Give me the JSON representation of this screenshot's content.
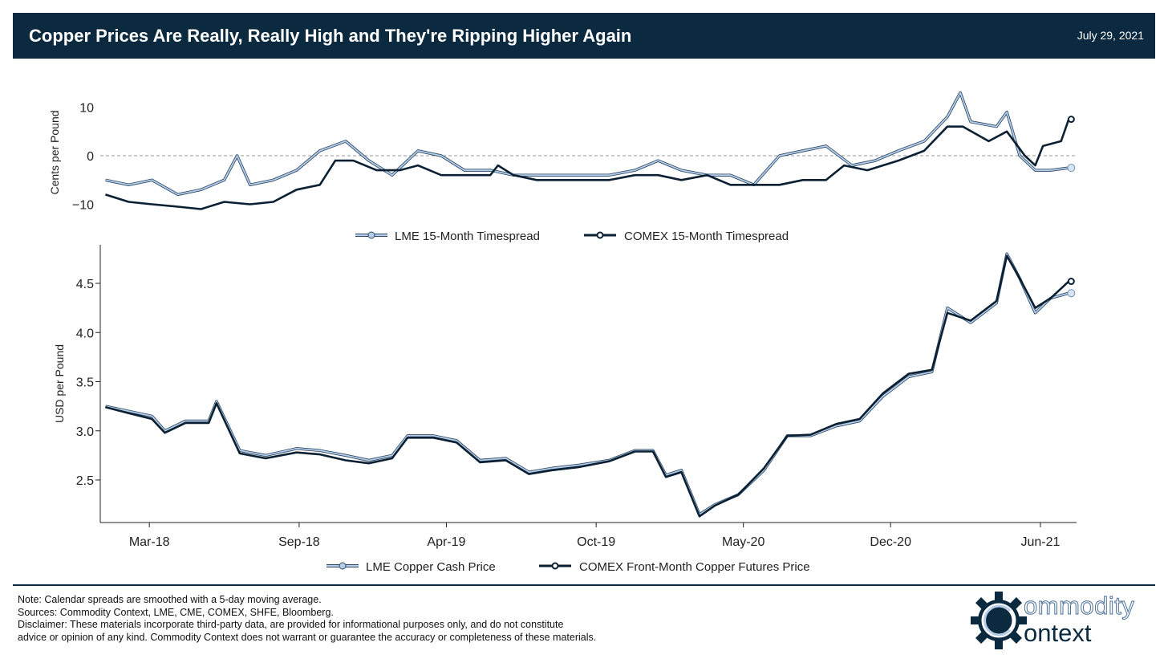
{
  "header": {
    "title": "Copper Prices Are Really, Really High and They're Ripping Higher Again",
    "date": "July 29, 2021"
  },
  "colors": {
    "header": "#0b2a40",
    "lme": "#b7cde8",
    "lme_edge": "#2c4a66",
    "comex": "#0b2033",
    "zero": "#999999"
  },
  "chart_data": [
    {
      "type": "line",
      "ylabel": "Cents per Pound",
      "ylim": [
        -13,
        14
      ],
      "yticks": [
        10,
        0,
        -10
      ],
      "ytick_labels": [
        "10",
        "0",
        "−10"
      ],
      "zero_line": true,
      "xlim": [
        2017.97,
        2021.75
      ],
      "legend": [
        "LME 15-Month Timespread",
        "COMEX 15-Month Timespread"
      ],
      "legend_placement": "bottom",
      "series": [
        {
          "name": "LME 15-Month Timespread",
          "x": [
            2017.99,
            2018.08,
            2018.17,
            2018.27,
            2018.36,
            2018.45,
            2018.5,
            2018.55,
            2018.64,
            2018.73,
            2018.82,
            2018.92,
            2019.01,
            2019.1,
            2019.2,
            2019.29,
            2019.38,
            2019.48,
            2019.57,
            2019.66,
            2019.76,
            2019.85,
            2019.94,
            2020.04,
            2020.13,
            2020.22,
            2020.32,
            2020.41,
            2020.5,
            2020.6,
            2020.69,
            2020.78,
            2020.88,
            2020.97,
            2021.06,
            2021.16,
            2021.25,
            2021.3,
            2021.34,
            2021.44,
            2021.48,
            2021.53,
            2021.59,
            2021.65,
            2021.72
          ],
          "y": [
            -5,
            -6,
            -5,
            -8,
            -7,
            -5,
            0,
            -6,
            -5,
            -3,
            1,
            3,
            -1,
            -4,
            1,
            0,
            -3,
            -3,
            -4,
            -4,
            -4,
            -4,
            -4,
            -3,
            -1,
            -3,
            -4,
            -4,
            -6,
            0,
            1,
            2,
            -2,
            -1,
            1,
            3,
            8,
            13,
            7,
            6,
            9,
            0,
            -3,
            -3,
            -2.5
          ]
        },
        {
          "name": "COMEX 15-Month Timespread",
          "x": [
            2017.99,
            2018.08,
            2018.17,
            2018.27,
            2018.36,
            2018.45,
            2018.55,
            2018.64,
            2018.73,
            2018.82,
            2018.88,
            2018.95,
            2019.04,
            2019.13,
            2019.2,
            2019.29,
            2019.38,
            2019.48,
            2019.51,
            2019.57,
            2019.66,
            2019.76,
            2019.85,
            2019.94,
            2020.04,
            2020.13,
            2020.22,
            2020.32,
            2020.41,
            2020.5,
            2020.6,
            2020.69,
            2020.78,
            2020.85,
            2020.94,
            2021.06,
            2021.16,
            2021.25,
            2021.31,
            2021.41,
            2021.48,
            2021.55,
            2021.59,
            2021.62,
            2021.69,
            2021.72
          ],
          "y": [
            -8,
            -9.5,
            -10,
            -10.5,
            -11,
            -9.5,
            -10,
            -9.5,
            -7,
            -6,
            -1,
            -1,
            -3,
            -3,
            -2,
            -4,
            -4,
            -4,
            -2,
            -4,
            -5,
            -5,
            -5,
            -5,
            -4,
            -4,
            -5,
            -4,
            -6,
            -6,
            -6,
            -5,
            -5,
            -2,
            -3,
            -1,
            1,
            6,
            6,
            3,
            5,
            0,
            -2,
            2,
            3,
            7.5
          ]
        }
      ]
    },
    {
      "type": "line",
      "ylabel": "USD per Pound",
      "ylim": [
        2.07,
        4.85
      ],
      "yticks": [
        4.5,
        4.0,
        3.5,
        3.0,
        2.5
      ],
      "ytick_labels": [
        "4.5",
        "4.0",
        "3.5",
        "3.0",
        "2.5"
      ],
      "xlim": [
        2017.97,
        2021.75
      ],
      "xticks": [
        2018.16,
        2018.74,
        2019.31,
        2019.89,
        2020.46,
        2021.03,
        2021.61
      ],
      "xtick_labels": [
        "Mar-18",
        "Sep-18",
        "Apr-19",
        "Oct-19",
        "May-20",
        "Dec-20",
        "Jun-21"
      ],
      "legend": [
        "LME Copper Cash Price",
        "COMEX Front-Month Copper Futures Price"
      ],
      "legend_placement": "bottom",
      "series": [
        {
          "name": "LME Copper Cash Price",
          "x": [
            2017.99,
            2018.08,
            2018.17,
            2018.22,
            2018.3,
            2018.39,
            2018.42,
            2018.51,
            2018.61,
            2018.73,
            2018.82,
            2018.92,
            2019.01,
            2019.1,
            2019.16,
            2019.26,
            2019.35,
            2019.44,
            2019.54,
            2019.63,
            2019.72,
            2019.82,
            2019.94,
            2020.04,
            2020.11,
            2020.16,
            2020.22,
            2020.29,
            2020.35,
            2020.44,
            2020.54,
            2020.63,
            2020.72,
            2020.82,
            2020.91,
            2021.0,
            2021.1,
            2021.19,
            2021.25,
            2021.34,
            2021.44,
            2021.48,
            2021.53,
            2021.59,
            2021.65,
            2021.72
          ],
          "y": [
            3.25,
            3.2,
            3.15,
            3.0,
            3.1,
            3.1,
            3.3,
            2.8,
            2.75,
            2.82,
            2.8,
            2.75,
            2.7,
            2.75,
            2.95,
            2.95,
            2.9,
            2.7,
            2.72,
            2.58,
            2.62,
            2.65,
            2.7,
            2.8,
            2.8,
            2.55,
            2.6,
            2.15,
            2.25,
            2.35,
            2.6,
            2.95,
            2.95,
            3.05,
            3.1,
            3.35,
            3.55,
            3.6,
            4.25,
            4.1,
            4.3,
            4.8,
            4.55,
            4.2,
            4.35,
            4.4
          ]
        },
        {
          "name": "COMEX Front-Month Copper Futures Price",
          "x": [
            2017.99,
            2018.08,
            2018.17,
            2018.22,
            2018.3,
            2018.39,
            2018.42,
            2018.51,
            2018.61,
            2018.73,
            2018.82,
            2018.92,
            2019.01,
            2019.1,
            2019.16,
            2019.26,
            2019.35,
            2019.44,
            2019.54,
            2019.63,
            2019.72,
            2019.82,
            2019.94,
            2020.04,
            2020.11,
            2020.16,
            2020.22,
            2020.29,
            2020.35,
            2020.44,
            2020.54,
            2020.63,
            2020.72,
            2020.82,
            2020.91,
            2021.0,
            2021.1,
            2021.19,
            2021.25,
            2021.34,
            2021.44,
            2021.48,
            2021.53,
            2021.59,
            2021.65,
            2021.72
          ],
          "y": [
            3.24,
            3.18,
            3.12,
            2.98,
            3.08,
            3.08,
            3.28,
            2.77,
            2.72,
            2.78,
            2.76,
            2.7,
            2.67,
            2.72,
            2.93,
            2.93,
            2.88,
            2.68,
            2.7,
            2.56,
            2.6,
            2.63,
            2.69,
            2.79,
            2.79,
            2.53,
            2.58,
            2.13,
            2.24,
            2.35,
            2.62,
            2.95,
            2.96,
            3.07,
            3.12,
            3.38,
            3.58,
            3.62,
            4.2,
            4.12,
            4.32,
            4.78,
            4.55,
            4.25,
            4.35,
            4.52
          ]
        }
      ]
    }
  ],
  "footer": {
    "note": "Note: Calendar spreads are smoothed with a 5-day moving average.",
    "sources": "Sources: Commodity Context, LME, CME, COMEX, SHFE, Bloomberg.",
    "disclaimer_1": "Disclaimer: These materials incorporate third-party data, are provided for informational purposes only, and do not constitute",
    "disclaimer_2": "advice or opinion of any kind. Commodity Context does not warrant or guarantee the accuracy or completeness of these materials.",
    "logo_line1": "ommodity",
    "logo_line2": "ontext"
  }
}
